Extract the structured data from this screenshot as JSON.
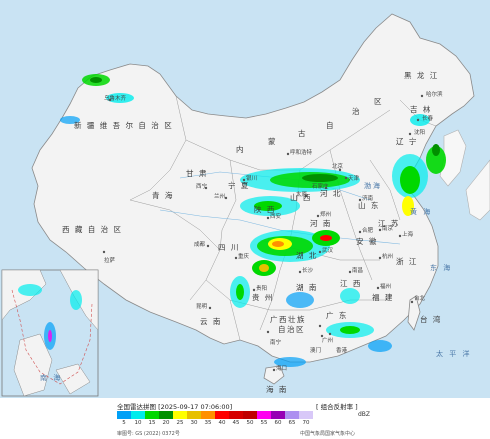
{
  "provinces": {
    "heilongjiang": "黑 龙 江",
    "jilin": "吉 林",
    "inner_mongolia_1": "内",
    "inner_mongolia_2": "蒙",
    "inner_mongolia_3": "古",
    "inner_mongolia_4": "自",
    "inner_mongolia_5": "治",
    "inner_mongolia_6": "区",
    "xinjiang": "新 疆 维 吾 尔 自 治 区",
    "xizang": "西 藏 自 治 区",
    "qinghai": "青 海",
    "gansu": "甘 肃",
    "sichuan": "四 川",
    "hubei": "湖 北",
    "hunan": "湖 南",
    "guizhou": "贵 州",
    "yunnan": "云 南",
    "guangxi_1": "广西壮族",
    "guangxi_2": "自治区",
    "guangdong": "广 东",
    "anhui": "安 徽",
    "jiangxi": "江 西",
    "fujian": "福 建",
    "zhejiang": "浙 江",
    "henan": "河 南",
    "shaanxi": "陕 西",
    "shanxi": "山 西",
    "ningxia": "宁 夏",
    "taiwan": "台 湾",
    "hainan": "海 南",
    "liaoning": "辽 宁",
    "shandong": "山 东",
    "hebei": "河 北",
    "jiangsu": "江 苏"
  },
  "cities": {
    "harbin": "哈尔滨",
    "changchun": "长春",
    "shenyang": "沈阳",
    "hohhot": "呼和浩特",
    "beijing": "北京",
    "tianjin": "天津",
    "shijiazhuang": "石家庄",
    "taiyuan": "太原",
    "jinan": "济南",
    "yinchuan": "银川",
    "xining": "西宁",
    "lanzhou": "兰州",
    "xian": "西安",
    "zhengzhou": "郑州",
    "hefei": "合肥",
    "nanjing": "南京",
    "shanghai": "上海",
    "wuhan": "武汉",
    "hangzhou": "杭州",
    "chengdu": "成都",
    "chongqing": "重庆",
    "changsha": "长沙",
    "nanchang": "南昌",
    "fuzhou": "福州",
    "guiyang": "贵阳",
    "kunming": "昆明",
    "nanning": "南宁",
    "guangzhou": "广州",
    "taipei": "台北",
    "haikou": "海口",
    "lhasa": "拉萨",
    "urumqi": "乌鲁木齐",
    "hongkong": "香港",
    "macau": "澳门"
  },
  "seas": {
    "bohai": "渤海",
    "yellow_sea": "黄 海",
    "east_china_sea": "东 海",
    "pacific": "太 平 洋",
    "south_china_sea": "南 海"
  },
  "legend": {
    "title": "全国雷达拼图 [2025-09-17 07:06:00]",
    "product": "[ 组合反射率 ]",
    "unit": "dBZ",
    "ticks": [
      "5",
      "10",
      "15",
      "20",
      "25",
      "30",
      "35",
      "40",
      "45",
      "50",
      "55",
      "60",
      "65",
      "70"
    ],
    "colors": [
      "#01a0f6",
      "#00ecec",
      "#00d800",
      "#019000",
      "#ffff00",
      "#e7c000",
      "#ff9000",
      "#ff0000",
      "#d60000",
      "#c00000",
      "#ff00f0",
      "#9600b4",
      "#ad90f0",
      "#d8c8f8"
    ],
    "review_no": "审图号: GS (2022) 0372号",
    "issuer": "中国气象局国家气象中心"
  },
  "colors": {
    "land": "#f3f3f3",
    "water": "#c9e3f3",
    "border": "#8a8a8a"
  }
}
